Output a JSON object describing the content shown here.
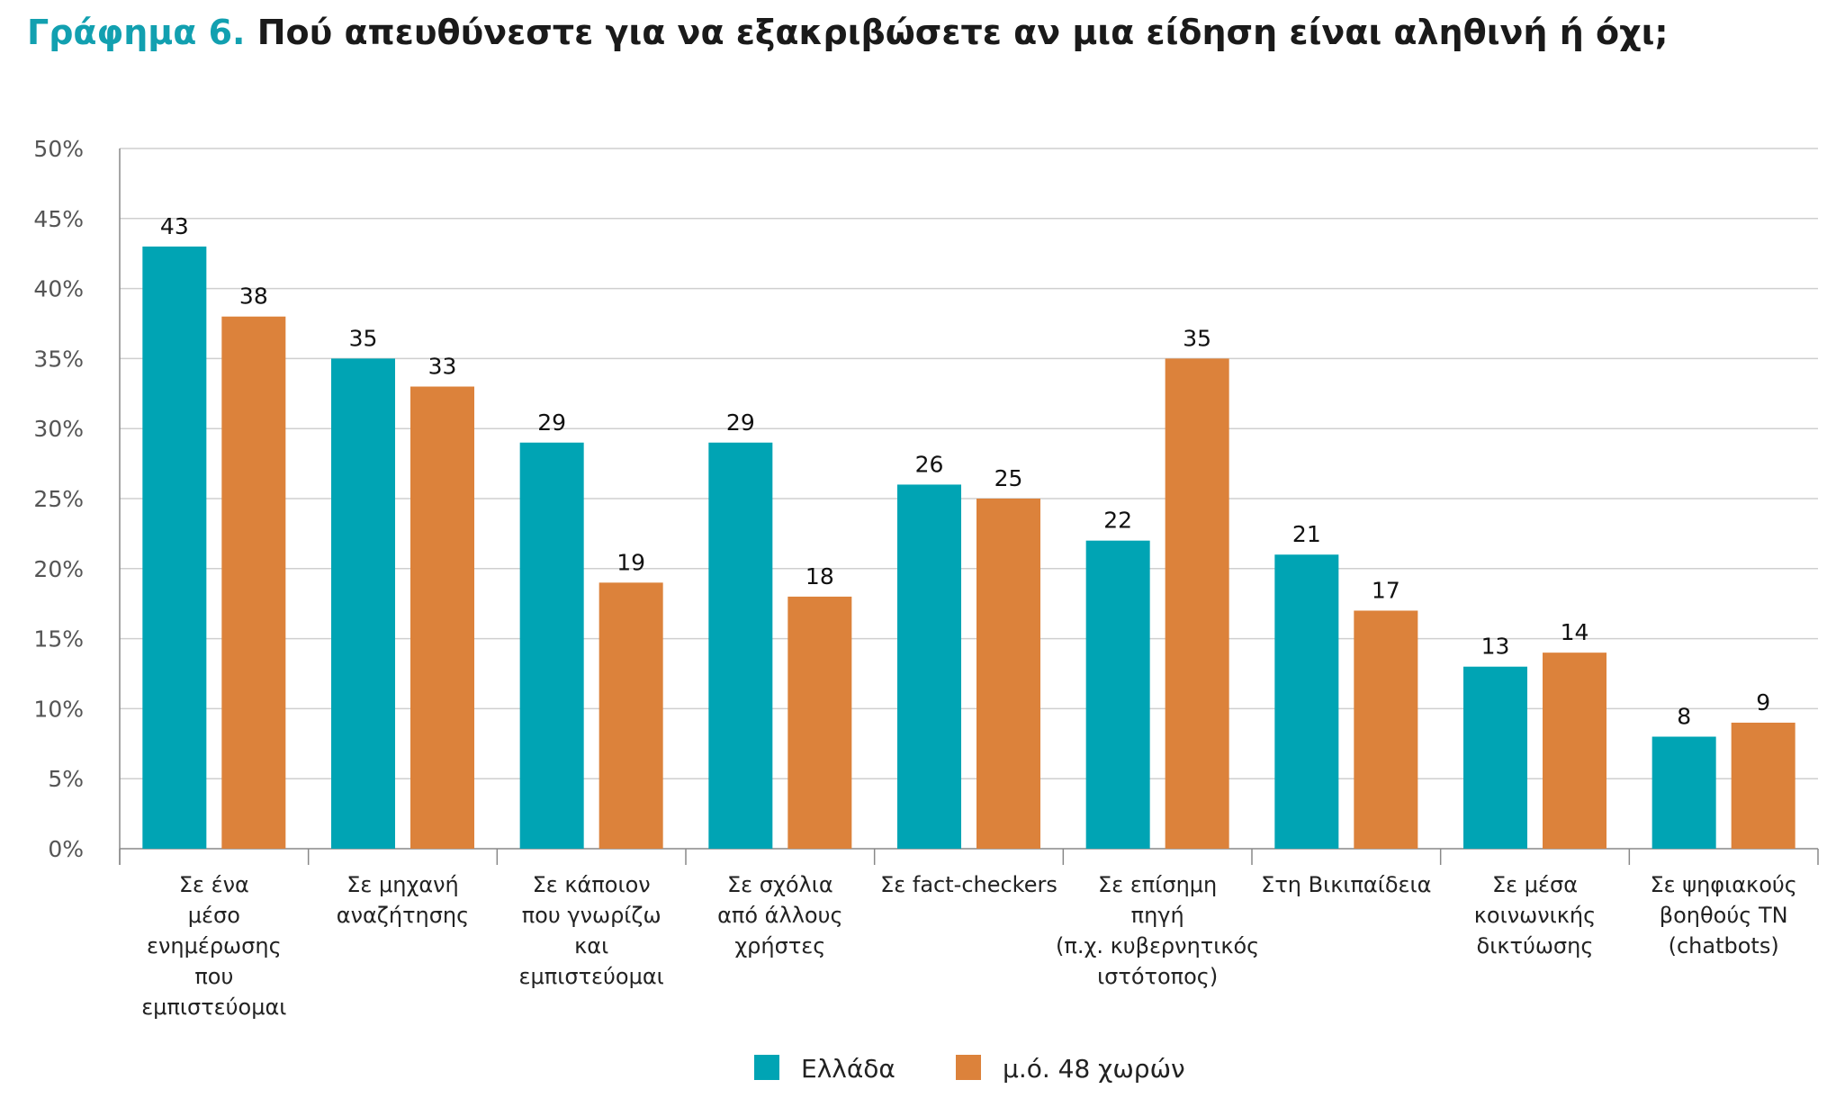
{
  "header": {
    "title_lead": "Γράφημα 6.",
    "title_main": "Πού απευθύνεστε για να εξακριβώσετε αν μια είδηση είναι αληθινή ή όχι;"
  },
  "colors": {
    "greece": "#00a4b4",
    "average": "#dc823b",
    "grid": "#cfcfcf",
    "axis": "#888888"
  },
  "chart_data": {
    "type": "bar",
    "title": "Γράφημα 6. Πού απευθύνεστε για να εξακριβώσετε αν μια είδηση είναι αληθινή ή όχι;",
    "categories": [
      [
        "Σε ένα",
        "μέσο",
        "ενημέρωσης",
        "που",
        "εμπιστεύομαι"
      ],
      [
        "Σε μηχανή",
        "αναζήτησης"
      ],
      [
        "Σε κάποιον",
        "που γνωρίζω",
        "και",
        "εμπιστεύομαι"
      ],
      [
        "Σε σχόλια",
        "από άλλους",
        "χρήστες"
      ],
      [
        "Σε fact-checkers"
      ],
      [
        "Σε επίσημη",
        "πηγή",
        "(π.χ. κυβερνητικός",
        "ιστότοπος)"
      ],
      [
        "Στη Βικιπαίδεια"
      ],
      [
        "Σε μέσα",
        "κοινωνικής",
        "δικτύωσης"
      ],
      [
        "Σε ψηφιακούς",
        "βοηθούς ΤΝ",
        "(chatbots)"
      ]
    ],
    "series": [
      {
        "name": "Ελλάδα",
        "color": "#00a4b4",
        "values": [
          43,
          35,
          29,
          29,
          26,
          22,
          21,
          13,
          8
        ]
      },
      {
        "name": "μ.ό. 48 χωρών",
        "color": "#dc823b",
        "values": [
          38,
          33,
          19,
          18,
          25,
          35,
          17,
          14,
          9
        ]
      }
    ],
    "yticks": [
      "0%",
      "5%",
      "10%",
      "15%",
      "20%",
      "25%",
      "30%",
      "35%",
      "40%",
      "45%",
      "50%"
    ],
    "ylim": [
      0,
      50
    ],
    "grid": true,
    "legend_position": "bottom-center"
  }
}
